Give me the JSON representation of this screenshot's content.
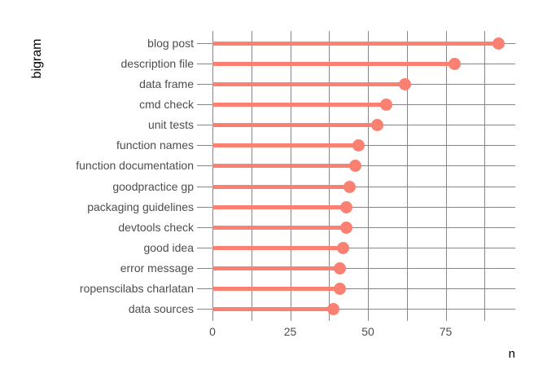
{
  "chart_data": {
    "type": "bar",
    "style": "lollipop",
    "orientation": "horizontal",
    "title": "",
    "xlabel": "n",
    "ylabel": "bigram",
    "categories": [
      "blog post",
      "description file",
      "data frame",
      "cmd check",
      "unit tests",
      "function names",
      "function documentation",
      "goodpractice gp",
      "packaging guidelines",
      "devtools check",
      "good idea",
      "error message",
      "ropenscilabs charlatan",
      "data sources"
    ],
    "values": [
      92,
      78,
      62,
      56,
      53,
      47,
      46,
      44,
      43,
      43,
      42,
      41,
      41,
      39
    ],
    "x_major_ticks": [
      0,
      25,
      50,
      75
    ],
    "x_gridlines": [
      0,
      12.5,
      25,
      37.5,
      50,
      62.5,
      75,
      87.5
    ],
    "xlim": [
      -5,
      98
    ],
    "grid": true,
    "legend": "none",
    "colors": {
      "lollipop": "#fa8072",
      "gridline": "#878787",
      "axis_text": "#4d4d4d",
      "axis_title": "#000000",
      "background": "#ffffff"
    }
  }
}
